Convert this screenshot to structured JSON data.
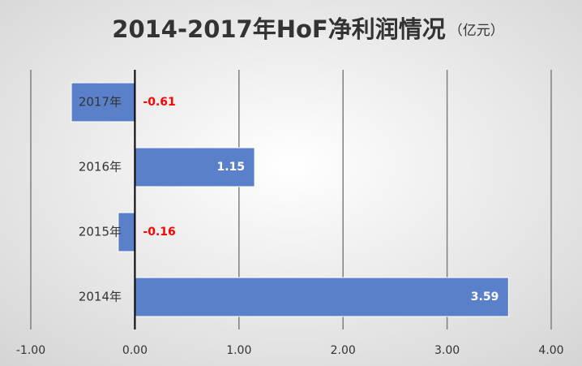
{
  "chart_data": {
    "type": "bar",
    "orientation": "horizontal",
    "title": "2014-2017年HoF净利润情况",
    "unit": "（亿元）",
    "categories": [
      "2014年",
      "2015年",
      "2016年",
      "2017年"
    ],
    "values": [
      3.59,
      -0.16,
      1.15,
      -0.61
    ],
    "color": "#5a80c9",
    "negative_label_color": "#ff0000",
    "positive_label_color": "#ffffff",
    "xlim": [
      -1,
      4
    ],
    "xticks": [
      {
        "value": -1,
        "label": "-1.00"
      },
      {
        "value": 0,
        "label": "0.00"
      },
      {
        "value": 1,
        "label": "1.00"
      },
      {
        "value": 2,
        "label": "2.00"
      },
      {
        "value": 3,
        "label": "3.00"
      },
      {
        "value": 4,
        "label": "4.00"
      }
    ],
    "grid": true
  }
}
